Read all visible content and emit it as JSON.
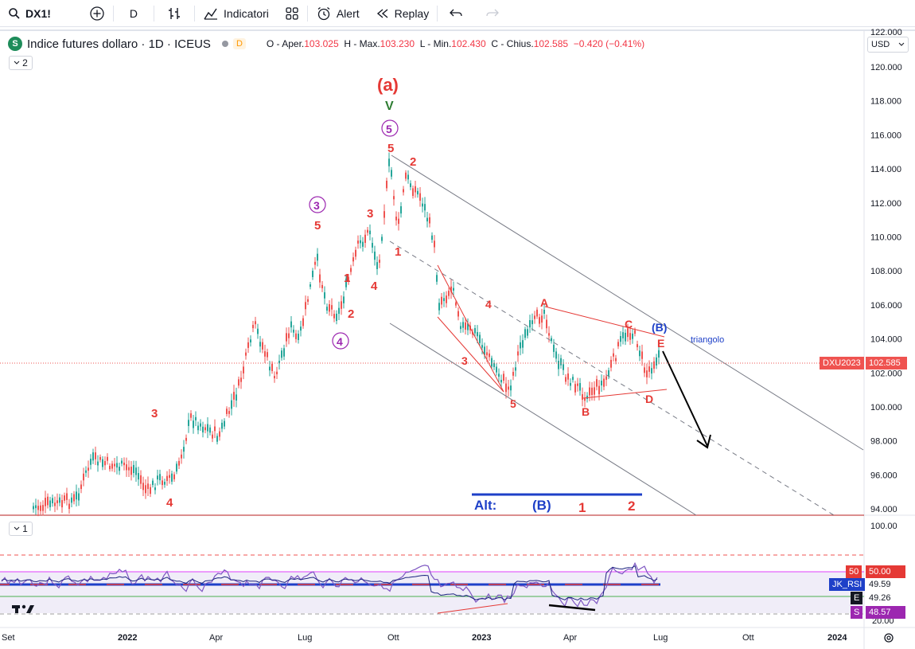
{
  "toolbar": {
    "symbol": "DX1!",
    "interval": "D",
    "indicators": "Indicatori",
    "alert": "Alert",
    "replay": "Replay"
  },
  "legend": {
    "title": "Indice futures dollaro · 1D · ICEUS",
    "badge": "S",
    "d_badge": "D",
    "o_label": "O - Aper.",
    "o": "103.025",
    "h_label": "H - Max.",
    "h": "103.230",
    "l_label": "L - Min.",
    "l": "102.430",
    "c_label": "C - Chius.",
    "c": "102.585",
    "change": "−0.420 (−0.41%)",
    "pane_count_main": "2",
    "pane_count_rsi": "1"
  },
  "currency": "USD",
  "price_axis": [
    "120.000",
    "118.000",
    "116.000",
    "114.000",
    "112.000",
    "110.000",
    "108.000",
    "106.000",
    "104.000",
    "102.000",
    "100.000",
    "98.000",
    "96.000",
    "94.000"
  ],
  "price_axis_top": "122.000",
  "rsi_axis_top": "100.00",
  "rsi_axis_bottom": "20.00",
  "time_axis": [
    "Set",
    "2022",
    "Apr",
    "Lug",
    "Ott",
    "2023",
    "Apr",
    "Lug",
    "Ott",
    "2024"
  ],
  "price_tags": {
    "symbol_tag": "DXU2023",
    "last": "102.585",
    "rsi_50_label": "50",
    "rsi_50_value": "50.00",
    "rsi_name": "JK_RSI",
    "rsi_value": "49.59",
    "e_label": "E",
    "e_value": "49.26",
    "s_label": "S",
    "s_value": "48.57"
  },
  "wave_labels": {
    "a_top": "(a)",
    "v": "V",
    "c5": "5",
    "c3": "3",
    "c4": "4",
    "five_top": "5",
    "two_top": "2",
    "three_a": "3",
    "five_a": "5",
    "one_a": "1",
    "four_a": "4",
    "two_a": "2",
    "three_left": "3",
    "four_left": "4",
    "one_b": "1",
    "four_b": "4",
    "three_b": "3",
    "five_b": "5",
    "A": "A",
    "B": "B",
    "C": "C",
    "D": "D",
    "E": "E",
    "B_blue": "(B)",
    "triangolo": "triangolo",
    "alt": "Alt:",
    "alt_b": "(B)",
    "alt_1": "1",
    "alt_2": "2"
  },
  "colors": {
    "up": "#26a69a",
    "down": "#ef5350",
    "wave_red": "#e53935",
    "wave_purple": "#9c27b0",
    "wave_green": "#2e7d32",
    "blue": "#1e40c8",
    "rsi_purple": "#7e57c2"
  },
  "logo": "TV"
}
